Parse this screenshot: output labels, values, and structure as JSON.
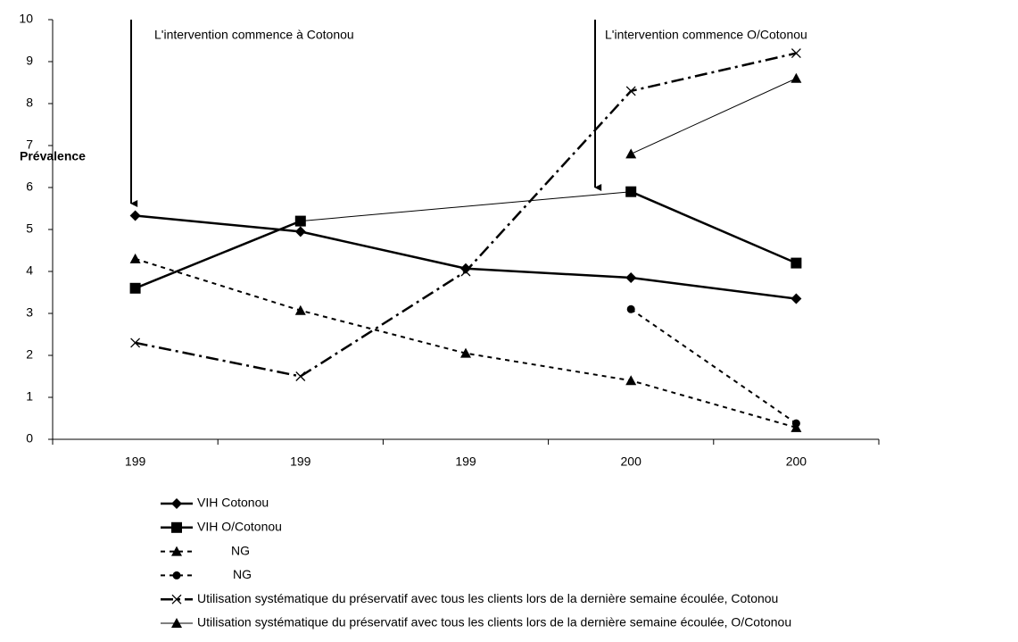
{
  "chart_data": {
    "type": "line",
    "annotations": [
      "L'intervention commence à Cotonou",
      "L'intervention commence O/Cotonou"
    ],
    "y_label": "Prévalence",
    "categories": [
      "199",
      "199",
      "199",
      "200",
      "200"
    ],
    "series": [
      {
        "name": "VIH Cotonou",
        "color": "#000000",
        "marker": "diamond",
        "line_style": "solid",
        "line_width": 2.5,
        "values": [
          5.33,
          4.95,
          4.07,
          3.85,
          3.35
        ]
      },
      {
        "name": "VIH O/Cotonou",
        "color": "#000000",
        "marker": "square",
        "line_style": "solid",
        "line_width": 2.5,
        "values": [
          3.6,
          5.2,
          null,
          5.9,
          4.2
        ]
      },
      {
        "name": "NG",
        "color": "#000000",
        "marker": "triangle",
        "line_style": "dashed",
        "line_width": 2,
        "values": [
          4.3,
          3.07,
          2.05,
          1.4,
          0.28
        ]
      },
      {
        "name": "NG",
        "color": "#000000",
        "marker": "circle",
        "line_style": "dashed",
        "line_width": 2,
        "values": [
          null,
          null,
          null,
          3.1,
          0.38
        ]
      },
      {
        "name": "Utilisation systématique du préservatif avec tous les clients lors de la dernière semaine écoulée, Cotonou",
        "color": "#000000",
        "marker": "x",
        "line_style": "dashdot",
        "line_width": 2.5,
        "values": [
          2.3,
          1.5,
          4.0,
          8.3,
          9.2
        ]
      },
      {
        "name": "Utilisation systématique du préservatif avec tous les clients lors de la dernière semaine écoulée, O/Cotonou",
        "color": "#000000",
        "marker": "triangle",
        "line_style": "solid",
        "line_width": 1,
        "values": [
          null,
          null,
          null,
          6.8,
          8.6
        ]
      }
    ],
    "ylim": [
      0,
      10
    ],
    "yticks": [
      0,
      1,
      2,
      3,
      4,
      5,
      6,
      7,
      8,
      9,
      10
    ],
    "grid": false
  }
}
